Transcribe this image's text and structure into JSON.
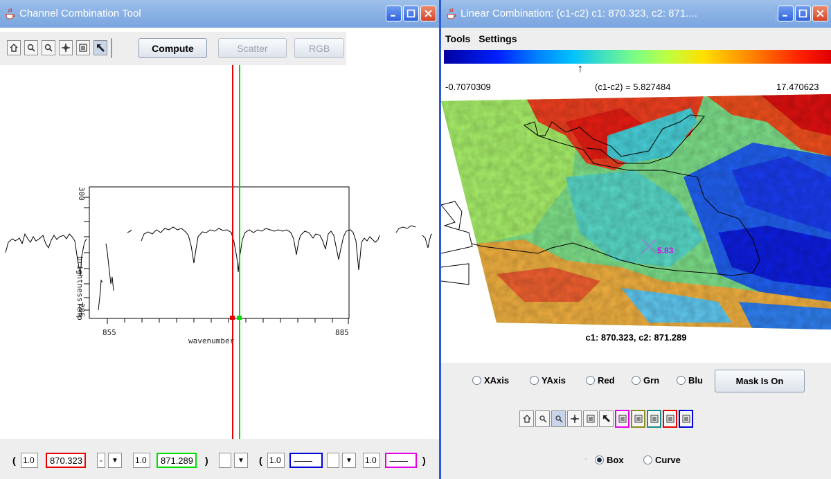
{
  "left_window": {
    "title": "Channel Combination Tool",
    "toolbar": {
      "tools": [
        "home-icon",
        "zoom-in-icon",
        "zoom-out-icon",
        "pan-icon",
        "select-box-icon",
        "pointer-icon"
      ],
      "compute_label": "Compute",
      "scatter_label": "Scatter",
      "rgb_label": "RGB"
    },
    "plot": {
      "ylabel": "brightnessTemp",
      "xlabel": "wavenumber",
      "y_ticks": [
        "300",
        "286"
      ],
      "x_ticks": [
        "855",
        "885"
      ]
    },
    "formula": {
      "open_paren": "(",
      "coef1": "1.0",
      "chan1": "870.323",
      "op1": "-",
      "dropdown": "▼",
      "coef2": "1.0",
      "chan2": "871.289",
      "close_paren1": ")",
      "open_paren2": "(",
      "coef3": "1.0",
      "chan3": "--------",
      "coef4": "1.0",
      "chan4": "--------",
      "close_paren2": ")"
    }
  },
  "right_window": {
    "title": "Linear Combination: (c1-c2)  c1: 870.323,  c2: 871....",
    "menu": [
      "Tools",
      "Settings"
    ],
    "colorbar": {
      "min": "-0.7070309",
      "max": "17.470623",
      "expression": "(c1-c2) = 5.827484",
      "marker": "↑"
    },
    "map_probe_value": "5.83",
    "map_caption": "c1: 870.323,  c2: 871.289",
    "axis_options": [
      "XAxis",
      "YAxis",
      "Red",
      "Grn",
      "Blu"
    ],
    "mask_button": "Mask Is On",
    "selection_modes": [
      "Box",
      "Curve"
    ],
    "selected_mode": "Box",
    "mode_prefix": "-",
    "tool_icons": [
      "home-icon",
      "zoom-in-icon",
      "zoom-out-icon",
      "pan-icon",
      "select-box-icon",
      "pointer-icon"
    ],
    "colored_selectors": [
      "magenta-selector",
      "olive-selector",
      "teal-selector",
      "red-selector",
      "blue-selector"
    ]
  },
  "colors": {
    "title_bar": "#8bb2e5",
    "chan1_marker": "#e60000",
    "chan2_marker": "#00dd00",
    "chan3_marker": "#0000dd",
    "chan4_marker": "#e600e6",
    "probe": "#e600e6"
  }
}
